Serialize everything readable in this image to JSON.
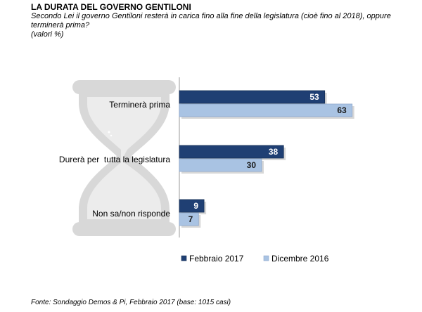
{
  "header": {
    "title": "LA DURATA DEL GOVERNO GENTILONI",
    "subtitle": "Secondo Lei il governo Gentiloni resterà in carica fino alla fine della legislatura (cioè fino al 2018), oppure terminerà prima?",
    "units": "(valori %)"
  },
  "footer": {
    "source": "Fonte: Sondaggio Demos & Pi, Febbraio 2017 (base: 1015 casi)"
  },
  "chart_data": {
    "type": "bar",
    "orientation": "horizontal",
    "categories": [
      "Terminerà prima",
      "Durerà per  tutta la legislatura",
      "Non sa/non risponde"
    ],
    "series": [
      {
        "name": "Febbraio 2017",
        "values": [
          53,
          38,
          9
        ],
        "color": "#1f3f73"
      },
      {
        "name": "Dicembre 2016",
        "values": [
          63,
          30,
          7
        ],
        "color": "#a9c3e3"
      }
    ],
    "data_labels": true,
    "legend_position": "bottom",
    "grid": false,
    "xlim": [
      0,
      100
    ]
  },
  "colors": {
    "dark_series_label": "#ffffff",
    "light_series_label": "#1a1a1a",
    "axis": "#9a9a9a",
    "hourglass": "#d8d8d8"
  }
}
